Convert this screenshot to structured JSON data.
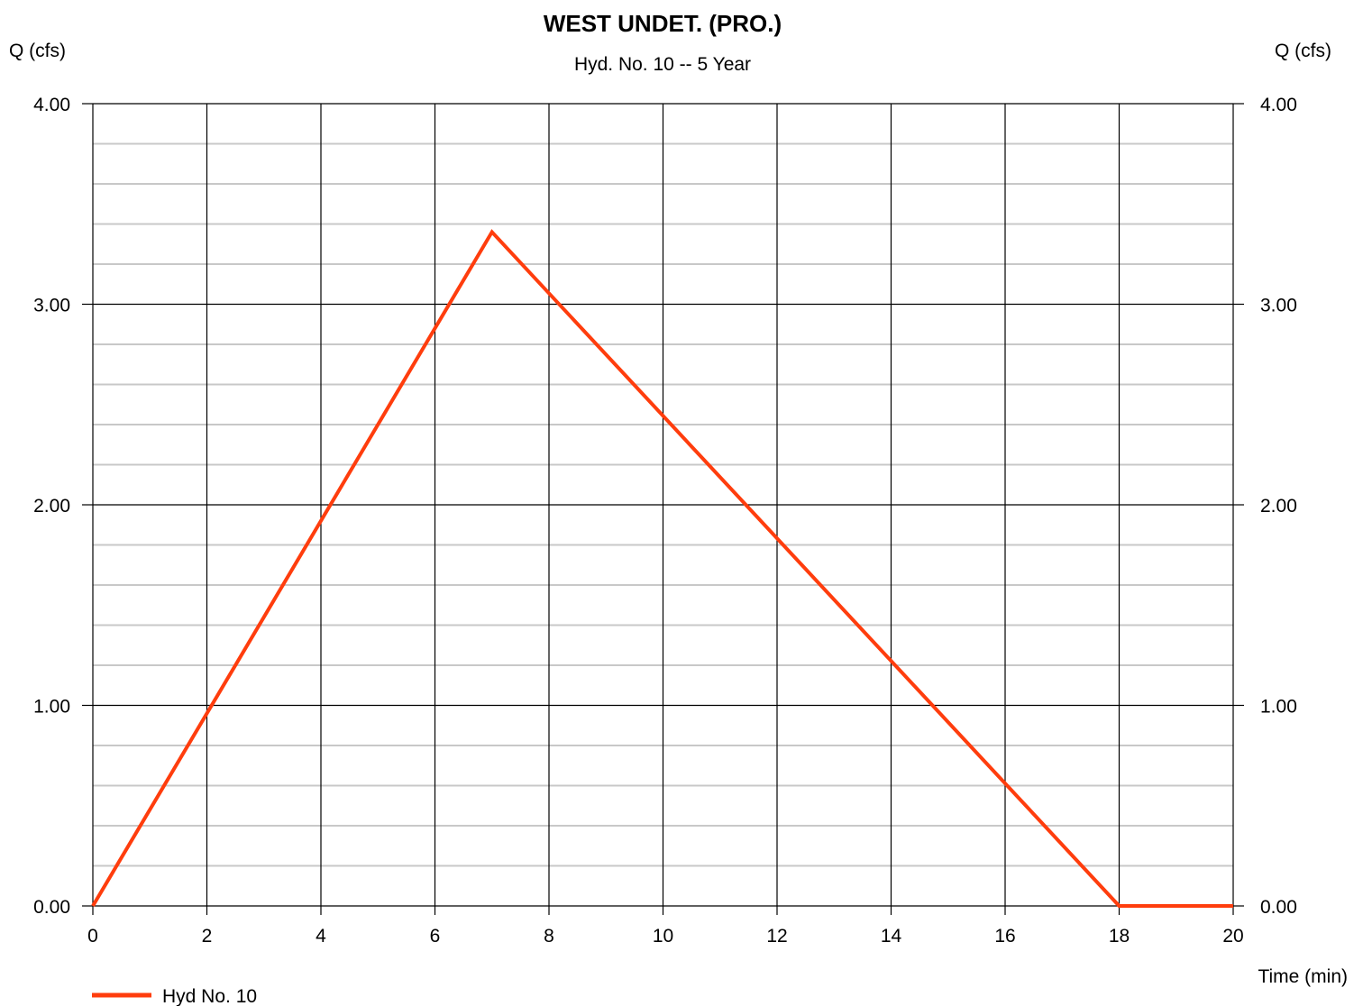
{
  "chart_data": {
    "type": "line",
    "title": "WEST UNDET. (PRO.)",
    "subtitle": "Hyd. No. 10 -- 5 Year",
    "ylabel_left": "Q (cfs)",
    "ylabel_right": "Q (cfs)",
    "xlabel": "Time (min)",
    "xlim": [
      0,
      20
    ],
    "ylim": [
      0,
      4
    ],
    "x_ticks": [
      0,
      2,
      4,
      6,
      8,
      10,
      12,
      14,
      16,
      18,
      20
    ],
    "x_tick_labels": [
      "0",
      "2",
      "4",
      "6",
      "8",
      "10",
      "12",
      "14",
      "16",
      "18",
      "20"
    ],
    "y_ticks": [
      0,
      1,
      2,
      3,
      4
    ],
    "y_tick_labels": [
      "0.00",
      "1.00",
      "2.00",
      "3.00",
      "4.00"
    ],
    "y_minor_step": 0.2,
    "grid": true,
    "legend_position": "bottom-left",
    "series": [
      {
        "name": "Hyd No. 10",
        "color": "#ff3d0d",
        "x": [
          0,
          7,
          18,
          20
        ],
        "y": [
          0,
          3.36,
          0,
          0
        ]
      }
    ]
  }
}
